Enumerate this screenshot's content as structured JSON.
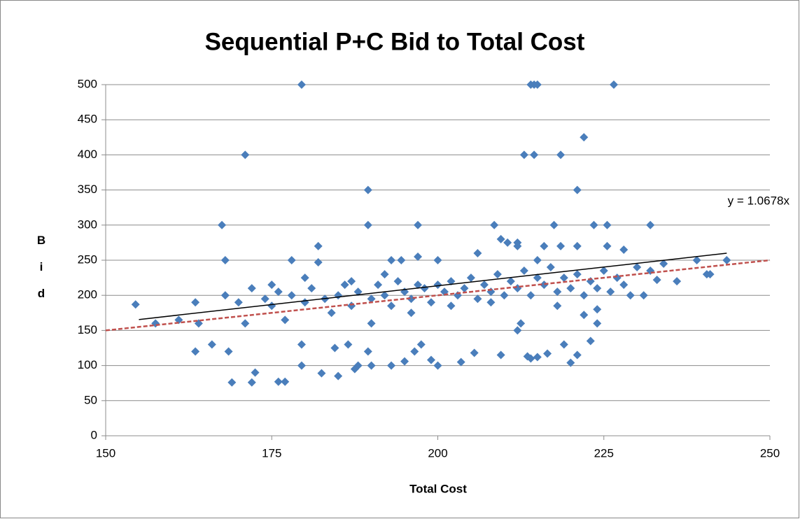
{
  "chart_data": {
    "type": "scatter",
    "title": "Sequential P+C Bid to Total Cost",
    "x_label": "Total Cost",
    "y_label": "Bid",
    "color": "#4a7ebb",
    "xlim": [
      150,
      250
    ],
    "xticks": [
      150,
      175,
      200,
      225,
      250
    ],
    "ylim": [
      0,
      500
    ],
    "yticks": [
      0,
      50,
      100,
      150,
      200,
      250,
      300,
      350,
      400,
      450,
      500
    ],
    "grid": true,
    "x": [
      179.5,
      214,
      214.5,
      215,
      226.5,
      171,
      213,
      214.5,
      218.5,
      222,
      189.5,
      221,
      167.5,
      189.5,
      197,
      208.5,
      217.5,
      223.5,
      225.5,
      232,
      169,
      172,
      176,
      177,
      172.5,
      182.5,
      185,
      187.5,
      188,
      189.5,
      190,
      193,
      195,
      200,
      203.5,
      213.5,
      214,
      215,
      220,
      221,
      223,
      179.5,
      163.5,
      166,
      168.5,
      179.5,
      184.5,
      186.5,
      196.5,
      197.5,
      199,
      205.5,
      209.5,
      212,
      212.5,
      216.5,
      219,
      222,
      224,
      230,
      231,
      232,
      233,
      234,
      236,
      239,
      240.5,
      241,
      243.5,
      228,
      225.5,
      157.5,
      154.5,
      161,
      163.5,
      164,
      168,
      178,
      182,
      182,
      193,
      194.5,
      197,
      200,
      206,
      209.5,
      210.5,
      212,
      212,
      215,
      216,
      218.5,
      221,
      168,
      170,
      172,
      174,
      175,
      176,
      178,
      180,
      181,
      183,
      185,
      186,
      187,
      188,
      190,
      191,
      192,
      193,
      194,
      195,
      196,
      197,
      198,
      199,
      200,
      201,
      202,
      203,
      204,
      205,
      206,
      207,
      208,
      209,
      210,
      211,
      212,
      213,
      214,
      215,
      216,
      217,
      218,
      219,
      220,
      221,
      222,
      223,
      224,
      225,
      226,
      227,
      228,
      229,
      171,
      177,
      184,
      190,
      196,
      202,
      208,
      218,
      224,
      175,
      180,
      187,
      192
    ],
    "values": [
      500,
      500,
      500,
      500,
      500,
      400,
      400,
      400,
      400,
      425,
      350,
      350,
      300,
      300,
      300,
      300,
      300,
      300,
      300,
      300,
      76,
      76,
      77,
      77,
      90,
      89,
      85,
      95,
      100,
      120,
      100,
      100,
      106,
      100,
      105,
      113,
      110,
      112,
      104,
      115,
      135,
      100,
      120,
      130,
      120,
      130,
      125,
      130,
      120,
      130,
      108,
      118,
      115,
      150,
      160,
      117,
      130,
      172,
      160,
      240,
      200,
      235,
      222,
      245,
      220,
      250,
      230,
      230,
      250,
      265,
      270,
      160,
      187,
      165,
      190,
      160,
      250,
      250,
      270,
      247,
      250,
      250,
      255,
      250,
      260,
      280,
      275,
      275,
      270,
      250,
      270,
      270,
      270,
      200,
      190,
      210,
      195,
      185,
      205,
      200,
      190,
      210,
      195,
      200,
      215,
      185,
      205,
      195,
      215,
      200,
      185,
      220,
      205,
      195,
      215,
      210,
      190,
      215,
      205,
      220,
      200,
      210,
      225,
      195,
      215,
      205,
      230,
      200,
      220,
      210,
      235,
      200,
      225,
      215,
      240,
      205,
      225,
      210,
      230,
      200,
      220,
      210,
      235,
      205,
      225,
      215,
      200,
      160,
      165,
      175,
      160,
      175,
      185,
      190,
      185,
      180,
      215,
      225,
      220,
      230
    ],
    "trendline": {
      "label": "y = 1.0678x",
      "slope": 1.0678,
      "x": [
        155,
        243.5
      ],
      "color": "#000000"
    },
    "reference_line": {
      "x": [
        150,
        250
      ],
      "values": [
        150,
        250
      ],
      "color": "#c0504d",
      "dashed": true
    }
  }
}
